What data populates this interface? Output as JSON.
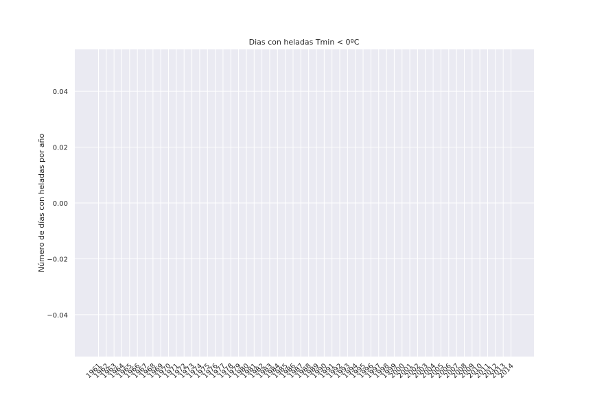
{
  "chart_data": {
    "type": "bar",
    "title": "Dias con heladas Tmin < 0ºC",
    "xlabel": "",
    "ylabel": "Número de días con heladas por año",
    "categories": [
      "1961",
      "1962",
      "1963",
      "1964",
      "1965",
      "1966",
      "1967",
      "1968",
      "1969",
      "1970",
      "1971",
      "1972",
      "1973",
      "1974",
      "1975",
      "1976",
      "1977",
      "1978",
      "1979",
      "1980",
      "1981",
      "1982",
      "1983",
      "1984",
      "1985",
      "1986",
      "1987",
      "1988",
      "1989",
      "1990",
      "1991",
      "1992",
      "1993",
      "1994",
      "1995",
      "1996",
      "1997",
      "1998",
      "1999",
      "2000",
      "2001",
      "2002",
      "2003",
      "2004",
      "2005",
      "2006",
      "2007",
      "2008",
      "2009",
      "2010",
      "2011",
      "2012",
      "2013",
      "2014"
    ],
    "values": [
      0,
      0,
      0,
      0,
      0,
      0,
      0,
      0,
      0,
      0,
      0,
      0,
      0,
      0,
      0,
      0,
      0,
      0,
      0,
      0,
      0,
      0,
      0,
      0,
      0,
      0,
      0,
      0,
      0,
      0,
      0,
      0,
      0,
      0,
      0,
      0,
      0,
      0,
      0,
      0,
      0,
      0,
      0,
      0,
      0,
      0,
      0,
      0,
      0,
      0,
      0,
      0,
      0,
      0
    ],
    "ylim": [
      -0.055,
      0.055
    ],
    "yticks": [
      -0.04,
      -0.02,
      0.0,
      0.02,
      0.04
    ],
    "ytick_labels": [
      "−0.04",
      "−0.02",
      "0.00",
      "0.02",
      "0.04"
    ],
    "grid": true,
    "colors": {
      "plot_background": "#eaeaf2",
      "grid": "#ffffff",
      "text": "#262626"
    }
  }
}
